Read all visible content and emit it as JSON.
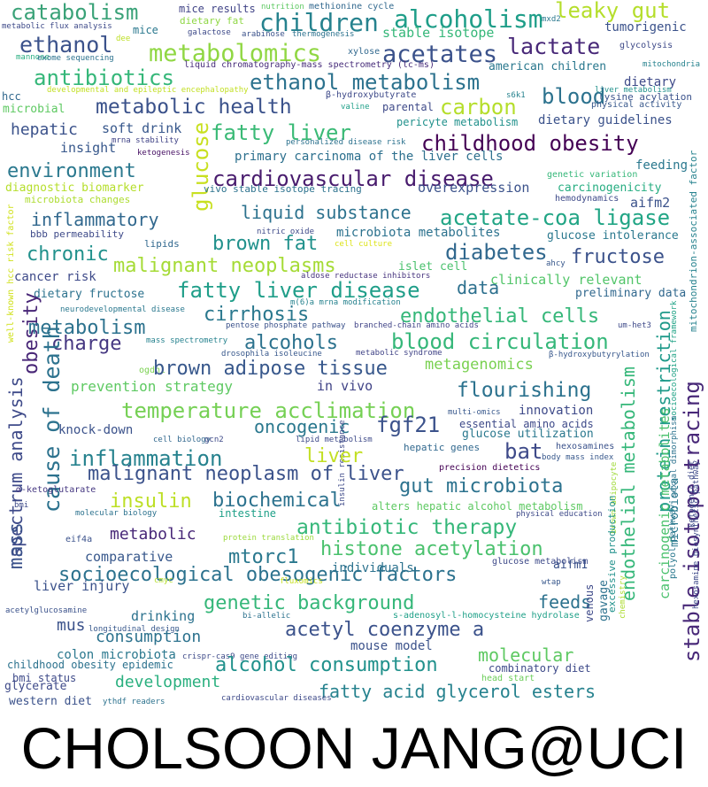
{
  "caption": "CHOLSOON JANG@UCI",
  "word_cloud": {
    "words": [
      {
        "text": "catabolism",
        "color": "#3aa278"
      },
      {
        "text": "mice results",
        "color": "#414487"
      },
      {
        "text": "nutrition",
        "color": "#5ec962"
      },
      {
        "text": "methionine cycle",
        "color": "#31688e"
      },
      {
        "text": "leaky gut",
        "color": "#b5de2b"
      },
      {
        "text": "ethanol",
        "color": "#3b528b"
      },
      {
        "text": "children",
        "color": "#26828e"
      },
      {
        "text": "alcoholism",
        "color": "#1f9e89"
      },
      {
        "text": "dietary fat",
        "color": "#8fd744"
      },
      {
        "text": "metabolic flux analysis",
        "color": "#3e4a89"
      },
      {
        "text": "mice",
        "color": "#2a788e"
      },
      {
        "text": "galactose",
        "color": "#3e4a89"
      },
      {
        "text": "arabinose",
        "color": "#3b528b"
      },
      {
        "text": "thermogenesis",
        "color": "#2c728e"
      },
      {
        "text": "stable isotope",
        "color": "#35b779"
      },
      {
        "text": "mxd2",
        "color": "#2a788e"
      },
      {
        "text": "tumorigenic",
        "color": "#3b528b"
      },
      {
        "text": "metabolomics",
        "color": "#90d743"
      },
      {
        "text": "acetates",
        "color": "#3b528b"
      },
      {
        "text": "lactate",
        "color": "#482878"
      },
      {
        "text": "dee",
        "color": "#bddf26"
      },
      {
        "text": "glycolysis",
        "color": "#3e4a89"
      },
      {
        "text": "mannose",
        "color": "#28ae80"
      },
      {
        "text": "exome sequencing",
        "color": "#2c728e"
      },
      {
        "text": "xylose",
        "color": "#31688e"
      },
      {
        "text": "liquid chromatography-mass spectrometry (lc-ms)",
        "color": "#472c7a"
      },
      {
        "text": "american children",
        "color": "#2a788e"
      },
      {
        "text": "mitochondria",
        "color": "#26828e"
      },
      {
        "text": "antibiotics",
        "color": "#35b779"
      },
      {
        "text": "ethanol metabolism",
        "color": "#2c728e"
      },
      {
        "text": "dietary",
        "color": "#3e4a89"
      },
      {
        "text": "hcc",
        "color": "#31688e"
      },
      {
        "text": "developmental and epileptic encephalopathy",
        "color": "#c2df23"
      },
      {
        "text": "β-hydroxybutyrate",
        "color": "#3e4a89"
      },
      {
        "text": "s6k1",
        "color": "#26828e"
      },
      {
        "text": "liver metabolism",
        "color": "#21918c"
      },
      {
        "text": "lysine acylation",
        "color": "#3b528b"
      },
      {
        "text": "blood",
        "color": "#2c728e"
      },
      {
        "text": "physical activity",
        "color": "#38588c"
      },
      {
        "text": "microbial",
        "color": "#5ec962"
      },
      {
        "text": "metabolic health",
        "color": "#3b528b"
      },
      {
        "text": "valine",
        "color": "#1fa088"
      },
      {
        "text": "parental",
        "color": "#3e4a89"
      },
      {
        "text": "carbon",
        "color": "#b5de2b"
      },
      {
        "text": "pericyte metabolism",
        "color": "#21918c"
      },
      {
        "text": "dietary guidelines",
        "color": "#3b528b"
      },
      {
        "text": "hepatic",
        "color": "#3b528b"
      },
      {
        "text": "soft drink",
        "color": "#38588c"
      },
      {
        "text": "fatty liver",
        "color": "#3aba76"
      },
      {
        "text": "insight",
        "color": "#38588c"
      },
      {
        "text": "mrna stability",
        "color": "#414487"
      },
      {
        "text": "glucose",
        "color": "#c8e020"
      },
      {
        "text": "personalized disease risk",
        "color": "#2c728e"
      },
      {
        "text": "childhood obesity",
        "color": "#440154"
      },
      {
        "text": "ketogenesis",
        "color": "#471164"
      },
      {
        "text": "primary carcinoma of the liver cells",
        "color": "#2d708e"
      },
      {
        "text": "environment",
        "color": "#2a788e"
      },
      {
        "text": "cardiovascular disease",
        "color": "#481b6d"
      },
      {
        "text": "feeding",
        "color": "#2a788e"
      },
      {
        "text": "genetic variation",
        "color": "#35b779"
      },
      {
        "text": "diagnostic biomarker",
        "color": "#b5de2b"
      },
      {
        "text": "vivo stable isotope tracing",
        "color": "#2c728e"
      },
      {
        "text": "overexpression",
        "color": "#3b528b"
      },
      {
        "text": "carcinogenicity",
        "color": "#26ad81"
      },
      {
        "text": "microbiota changes",
        "color": "#addc30"
      },
      {
        "text": "hemodynamics",
        "color": "#3e4a89"
      },
      {
        "text": "aifm2",
        "color": "#3b528b"
      },
      {
        "text": "mitochondrion-associated factor",
        "color": "#26828e"
      },
      {
        "text": "inflammatory",
        "color": "#31688e"
      },
      {
        "text": "liquid substance",
        "color": "#2c728e"
      },
      {
        "text": "acetate-coa ligase",
        "color": "#21a585"
      },
      {
        "text": "bbb permeability",
        "color": "#3e4a89"
      },
      {
        "text": "nitric oxide",
        "color": "#3e4a89"
      },
      {
        "text": "microbiota metabolites",
        "color": "#2c728e"
      },
      {
        "text": "glucose intolerance",
        "color": "#2a788e"
      },
      {
        "text": "well-known hcc risk factor",
        "color": "#d0e11c"
      },
      {
        "text": "lipids",
        "color": "#31688e"
      },
      {
        "text": "brown fat",
        "color": "#21918c"
      },
      {
        "text": "cell culture",
        "color": "#dde318"
      },
      {
        "text": "diabetes",
        "color": "#31688e"
      },
      {
        "text": "chronic",
        "color": "#21918c"
      },
      {
        "text": "malignant neoplasms",
        "color": "#a5db36"
      },
      {
        "text": "fructose",
        "color": "#3b528b"
      },
      {
        "text": "islet cell",
        "color": "#4ac16d"
      },
      {
        "text": "ahcy",
        "color": "#38588c"
      },
      {
        "text": "cancer risk",
        "color": "#3e4a89"
      },
      {
        "text": "aldose reductase inhibitors",
        "color": "#46337e"
      },
      {
        "text": "clinically relevant",
        "color": "#52c569"
      },
      {
        "text": "dietary fructose",
        "color": "#2c728e"
      },
      {
        "text": "fatty liver disease",
        "color": "#1f9e89"
      },
      {
        "text": "data",
        "color": "#2d708e"
      },
      {
        "text": "preliminary data",
        "color": "#31688e"
      },
      {
        "text": "m(6)a mrna modification",
        "color": "#26828e"
      },
      {
        "text": "obesity",
        "color": "#482677"
      },
      {
        "text": "neurodevelopmental disease",
        "color": "#2a788e"
      },
      {
        "text": "cirrhosis",
        "color": "#2a788e"
      },
      {
        "text": "endothelial cells",
        "color": "#35b779"
      },
      {
        "text": "socioecological framework",
        "color": "#20a386"
      },
      {
        "text": "metabolism",
        "color": "#2c728e"
      },
      {
        "text": "pentose phosphate pathway",
        "color": "#3b528b"
      },
      {
        "text": "branched-chain amino acids",
        "color": "#414487"
      },
      {
        "text": "mass spectrometry",
        "color": "#26828e"
      },
      {
        "text": "um-het3",
        "color": "#3e4a89"
      },
      {
        "text": "charge",
        "color": "#453781"
      },
      {
        "text": "alcohols",
        "color": "#2c728e"
      },
      {
        "text": "blood circulation",
        "color": "#35b779"
      },
      {
        "text": "drosophila isoleucine",
        "color": "#38588c"
      },
      {
        "text": "metabolic syndrome",
        "color": "#414487"
      },
      {
        "text": "ogdhl",
        "color": "#7ad151"
      },
      {
        "text": "β-hydroxybutyrylation",
        "color": "#38588c"
      },
      {
        "text": "protein restriction",
        "color": "#1f9a8a"
      },
      {
        "text": "brown adipose tissue",
        "color": "#38588c"
      },
      {
        "text": "metagenomics",
        "color": "#7ad151"
      },
      {
        "text": "cause of death",
        "color": "#2c728e"
      },
      {
        "text": "prevention strategy",
        "color": "#5ec962"
      },
      {
        "text": "in vivo",
        "color": "#414487"
      },
      {
        "text": "endothelial metabolism",
        "color": "#35b779"
      },
      {
        "text": "flourishing",
        "color": "#2c728e"
      },
      {
        "text": "temperature acclimation",
        "color": "#75d054"
      },
      {
        "text": "spectrum analysis",
        "color": "#3e4a89"
      },
      {
        "text": "oncogenic",
        "color": "#2a788e"
      },
      {
        "text": "fgf21",
        "color": "#3b528b"
      },
      {
        "text": "innovation",
        "color": "#3e4a89"
      },
      {
        "text": "multi-omics",
        "color": "#38588c"
      },
      {
        "text": "knock-down",
        "color": "#3b528b"
      },
      {
        "text": "essential amino acids",
        "color": "#3e4a89"
      },
      {
        "text": "glucose utilization",
        "color": "#2a788e"
      },
      {
        "text": "insulin resistance",
        "color": "#3e4a89"
      },
      {
        "text": "cell biology",
        "color": "#31688e"
      },
      {
        "text": "gcn2",
        "color": "#3e4a89"
      },
      {
        "text": "lipid metabolism",
        "color": "#3e4a89"
      },
      {
        "text": "hexosamines",
        "color": "#3b528b"
      },
      {
        "text": "inflammation",
        "color": "#26828e"
      },
      {
        "text": "liver",
        "color": "#c2df23"
      },
      {
        "text": "bat",
        "color": "#3e4a89"
      },
      {
        "text": "hepatic genes",
        "color": "#31688e"
      },
      {
        "text": "body mass index",
        "color": "#38588c"
      },
      {
        "text": "malignant neoplasm of liver",
        "color": "#3b528b"
      },
      {
        "text": "precision dietetics",
        "color": "#440154"
      },
      {
        "text": "sexual dimorphism",
        "color": "#2c728e"
      },
      {
        "text": "α-ketoglutarate",
        "color": "#453781"
      },
      {
        "text": "gut microbiota",
        "color": "#2c728e"
      },
      {
        "text": "stable isotope tracing",
        "color": "#482878"
      },
      {
        "text": "insulin",
        "color": "#bddf26"
      },
      {
        "text": "biochemical",
        "color": "#2c728e"
      },
      {
        "text": "bmi",
        "color": "#3e4a89"
      },
      {
        "text": "alters hepatic alcohol metabolism",
        "color": "#5ec962"
      },
      {
        "text": "intestine",
        "color": "#1fa088"
      },
      {
        "text": "molecular biology",
        "color": "#2c728e"
      },
      {
        "text": "physical education",
        "color": "#3e4a89"
      },
      {
        "text": "ketogenic diet",
        "color": "#3e4a89"
      },
      {
        "text": "antibiotic therapy",
        "color": "#35b779"
      },
      {
        "text": "carcinogenic metabolites",
        "color": "#4ac16d"
      },
      {
        "text": "polyol pathway",
        "color": "#2a788e"
      },
      {
        "text": "eif4a",
        "color": "#3b528b"
      },
      {
        "text": "metabolic",
        "color": "#482878"
      },
      {
        "text": "brown adipocyte",
        "color": "#a0da39"
      },
      {
        "text": "protein translation",
        "color": "#9bd93c"
      },
      {
        "text": "mtorc1",
        "color": "#2a788e"
      },
      {
        "text": "histone acetylation",
        "color": "#4ac16d"
      },
      {
        "text": "hexosamine biosynthetic pathway",
        "color": "#3e4a89"
      },
      {
        "text": "excessive production",
        "color": "#21918c"
      },
      {
        "text": "comparative",
        "color": "#38588c"
      },
      {
        "text": "glucose metabolism",
        "color": "#3e4a89"
      },
      {
        "text": "socioecological obesogenic factors",
        "color": "#2c728e"
      },
      {
        "text": "individuals",
        "color": "#2c728e"
      },
      {
        "text": "aifm1",
        "color": "#3b528b"
      },
      {
        "text": "cmyc",
        "color": "#b5de2b"
      },
      {
        "text": "fluxomics",
        "color": "#c8e020"
      },
      {
        "text": "wtap",
        "color": "#38588c"
      },
      {
        "text": "liver injury",
        "color": "#3b528b"
      },
      {
        "text": "genetic background",
        "color": "#35b779"
      },
      {
        "text": "feeds",
        "color": "#2c728e"
      },
      {
        "text": "microbiota",
        "color": "#2a788e"
      },
      {
        "text": "chemistry",
        "color": "#addc30"
      },
      {
        "text": "acetylglucosamine",
        "color": "#3b528b"
      },
      {
        "text": "bi-allelic",
        "color": "#2c728e"
      },
      {
        "text": "s-adenosyl-l-homocysteine hydrolase",
        "color": "#1fa088"
      },
      {
        "text": "venous",
        "color": "#3e4a89"
      },
      {
        "text": "mass",
        "color": "#3b528b"
      },
      {
        "text": "drinking",
        "color": "#2c728e"
      },
      {
        "text": "longitudinal design",
        "color": "#38588c"
      },
      {
        "text": "acetyl coenzyme a",
        "color": "#3b528b"
      },
      {
        "text": "gavage",
        "color": "#2c728e"
      },
      {
        "text": "mus",
        "color": "#3b528b"
      },
      {
        "text": "consumption",
        "color": "#2c728e"
      },
      {
        "text": "molecular",
        "color": "#5ec962"
      },
      {
        "text": "colon microbiota",
        "color": "#2a788e"
      },
      {
        "text": "mouse model",
        "color": "#3b528b"
      },
      {
        "text": "crispr-cas9 gene editing",
        "color": "#3e4a89"
      },
      {
        "text": "childhood obesity epidemic",
        "color": "#2c728e"
      },
      {
        "text": "alcohol consumption",
        "color": "#21918c"
      },
      {
        "text": "bmi status",
        "color": "#3e4a89"
      },
      {
        "text": "combinatory diet",
        "color": "#3e4a89"
      },
      {
        "text": "development",
        "color": "#2ab07f"
      },
      {
        "text": "glycerate",
        "color": "#3e4a89"
      },
      {
        "text": "head start",
        "color": "#6ccd5a"
      },
      {
        "text": "fatty acid glycerol esters",
        "color": "#26828e"
      },
      {
        "text": "western diet",
        "color": "#3b528b"
      },
      {
        "text": "ythdf readers",
        "color": "#2c728e"
      },
      {
        "text": "cardiovascular diseases",
        "color": "#3e4a89"
      }
    ]
  }
}
